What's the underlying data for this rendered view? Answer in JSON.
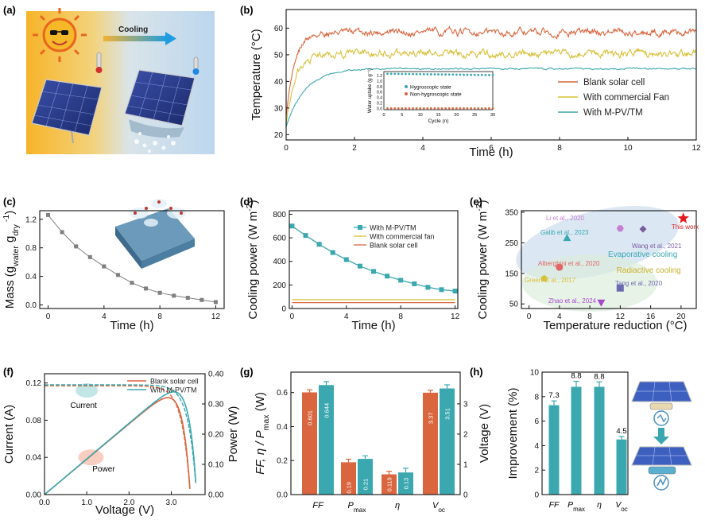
{
  "panels": {
    "a": {
      "label": "(a)",
      "arrow_text": "Cooling"
    },
    "b": {
      "label": "(b)"
    },
    "c": {
      "label": "(c)"
    },
    "d": {
      "label": "(d)"
    },
    "e": {
      "label": "(e)"
    },
    "f": {
      "label": "(f)"
    },
    "g": {
      "label": "(g)"
    },
    "h": {
      "label": "(h)"
    }
  },
  "colors": {
    "orange": "#d9663f",
    "yellow": "#d8c13a",
    "teal": "#3ba8b0",
    "gray": "#7f7f7f",
    "sky": "#cfe0f0",
    "sun": "#f5b829"
  },
  "chart_data": [
    {
      "id": "b",
      "type": "line",
      "title": "",
      "xlabel": "Time (h)",
      "ylabel": "Temperature (°C)",
      "xlim": [
        0,
        12
      ],
      "ylim": [
        18,
        67
      ],
      "xticks": [
        "0",
        "2",
        "4",
        "6",
        "8",
        "10",
        "12"
      ],
      "xtick_values": [
        0,
        2,
        4,
        6,
        8,
        10,
        12
      ],
      "yticks": [
        "20",
        "30",
        "40",
        "50",
        "60"
      ],
      "ytick_values": [
        20,
        30,
        40,
        50,
        60
      ],
      "series": [
        {
          "name": "Blank solar cell",
          "color": "#d9663f",
          "start": 27,
          "plateau": 58.5,
          "tau": 0.25,
          "noise": 1.4
        },
        {
          "name": "With commercial Fan",
          "color": "#d8c13a",
          "start": 24,
          "plateau": 50.5,
          "tau": 0.28,
          "noise": 1.5
        },
        {
          "name": "With M-PV/TM",
          "color": "#3ba8b0",
          "start": 23,
          "plateau": 44.8,
          "tau": 0.55,
          "noise": 0.3
        }
      ],
      "inset": {
        "xlabel": "Cycle (n)",
        "ylabel": "Water uptake (g g⁻¹)",
        "xticks": [
          "0",
          "5",
          "10",
          "15",
          "20",
          "25",
          "30"
        ],
        "xtick_values": [
          0,
          5,
          10,
          15,
          20,
          25,
          30
        ],
        "yticks": [
          "0.0",
          "0.2",
          "0.4",
          "0.6",
          "0.8",
          "1.0",
          "1.2"
        ],
        "ytick_values": [
          0,
          0.2,
          0.4,
          0.6,
          0.8,
          1.0,
          1.2
        ],
        "xlim": [
          0,
          30
        ],
        "ylim": [
          -0.05,
          1.35
        ],
        "series": [
          {
            "name": "Hygroscopic state",
            "color": "#3ba8b0",
            "start": 1.27,
            "end": 1.22
          },
          {
            "name": "Non-hygroscopic state",
            "color": "#d9663f",
            "start": 0.0,
            "end": 0.0
          }
        ]
      }
    },
    {
      "id": "c",
      "type": "line",
      "xlabel": "Time (h)",
      "ylabel": "Mass (g_water g_dry⁻¹)",
      "ylabel_parts": {
        "pre": "Mass (g",
        "sub1": "water",
        "mid": " g",
        "sub2": "dry",
        "sup": " -1",
        "post": ")"
      },
      "xlim": [
        -0.6,
        12.6
      ],
      "ylim": [
        -0.05,
        1.32
      ],
      "xticks": [
        "0",
        "4",
        "8",
        "12"
      ],
      "xtick_values": [
        0,
        4,
        8,
        12
      ],
      "yticks": [
        "0.0",
        "0.4",
        "0.8",
        "1.2"
      ],
      "ytick_values": [
        0,
        0.4,
        0.8,
        1.2
      ],
      "x": [
        0,
        1,
        2,
        3,
        4,
        5,
        6,
        7,
        8,
        9,
        10,
        11,
        12
      ],
      "y": [
        1.26,
        1.02,
        0.82,
        0.67,
        0.54,
        0.42,
        0.31,
        0.23,
        0.17,
        0.13,
        0.1,
        0.07,
        0.04
      ]
    },
    {
      "id": "d",
      "type": "line",
      "xlabel": "Time (h)",
      "ylabel": "Cooling power (W m⁻²)",
      "ylabel_parts": {
        "pre": "Cooling power (W m",
        "sup": "-2",
        "post": ")"
      },
      "xlim": [
        -0.2,
        12.2
      ],
      "ylim": [
        0,
        830
      ],
      "xticks": [
        "0",
        "4",
        "8",
        "12"
      ],
      "xtick_values": [
        0,
        4,
        8,
        12
      ],
      "yticks": [
        "0",
        "200",
        "400",
        "600",
        "800"
      ],
      "ytick_values": [
        0,
        200,
        400,
        600,
        800
      ],
      "series": [
        {
          "name": "With M-PV/TM",
          "color": "#3ba8b0",
          "x": [
            0,
            1,
            2,
            3,
            4,
            5,
            6,
            7,
            8,
            9,
            10,
            11,
            12
          ],
          "y": [
            700,
            620,
            545,
            475,
            415,
            360,
            315,
            275,
            240,
            210,
            180,
            160,
            148
          ]
        },
        {
          "name": "With commercial fan",
          "color": "#d8c13a",
          "x": [
            0,
            12
          ],
          "y": [
            75,
            75
          ]
        },
        {
          "name": "Blank solar cell",
          "color": "#d9663f",
          "x": [
            0,
            12
          ],
          "y": [
            50,
            50
          ]
        }
      ]
    },
    {
      "id": "e",
      "type": "scatter",
      "xlabel": "Temperature reduction (°C)",
      "ylabel": "Cooling power (W m⁻²)",
      "ylabel_parts": {
        "pre": "Cooling power (W m",
        "sup": "-2",
        "post": ")"
      },
      "xlim": [
        -1,
        22
      ],
      "ylim": [
        35,
        355
      ],
      "xticks": [
        "0",
        "4",
        "8",
        "12",
        "16",
        "20"
      ],
      "xtick_values": [
        0,
        4,
        8,
        12,
        16,
        20
      ],
      "yticks": [
        "50",
        "150",
        "250",
        "350"
      ],
      "ytick_values": [
        50,
        150,
        250,
        350
      ],
      "regions": [
        "Evaporative cooling",
        "Radiactive cooling"
      ],
      "points": [
        {
          "name": "This work",
          "x": 20.3,
          "y": 330,
          "color": "#e31a1c",
          "marker": "star"
        },
        {
          "name": "Li et al., 2020",
          "x": 12,
          "y": 297,
          "color": "#c77dd1",
          "marker": "hexagon"
        },
        {
          "name": "Wang et al., 2021",
          "x": 15,
          "y": 295,
          "color": "#7a5c9e",
          "marker": "diamond"
        },
        {
          "name": "Galib et al., 2023",
          "x": 5,
          "y": 265,
          "color": "#3ba8b0",
          "marker": "triangle"
        },
        {
          "name": "Alberghini et al., 2020",
          "x": 4,
          "y": 170,
          "color": "#e06666",
          "marker": "circle"
        },
        {
          "name": "Green et al., 2017",
          "x": 2,
          "y": 133,
          "color": "#d8c13a",
          "marker": "pentagon"
        },
        {
          "name": "Tang et al., 2020",
          "x": 12,
          "y": 102,
          "color": "#6a6ab0",
          "marker": "square"
        },
        {
          "name": "Zhao et al., 2024",
          "x": 9.5,
          "y": 55,
          "color": "#a64ac9",
          "marker": "triangle-down"
        }
      ]
    },
    {
      "id": "f",
      "type": "line",
      "xlabel": "Voltage (V)",
      "ylabel": "Current (A)",
      "y2label": "Power (W)",
      "xlim": [
        0,
        3.8
      ],
      "ylim": [
        0,
        0.13
      ],
      "y2lim": [
        0,
        0.4
      ],
      "xticks": [
        "0.0",
        "1.0",
        "2.0",
        "3.0"
      ],
      "xtick_values": [
        0,
        1,
        2,
        3
      ],
      "yticks": [
        "0.00",
        "0.04",
        "0.08",
        "0.12"
      ],
      "ytick_values": [
        0,
        0.04,
        0.08,
        0.12
      ],
      "y2ticks": [
        "0.00",
        "0.10",
        "0.20",
        "0.30",
        "0.40"
      ],
      "y2tick_values": [
        0,
        0.1,
        0.2,
        0.3,
        0.4
      ],
      "annotations": [
        "Current",
        "Power"
      ],
      "series": [
        {
          "name": "Blank solar cell",
          "color": "#d9663f",
          "isc": 0.117,
          "voc": 3.45,
          "b": 0.19
        },
        {
          "name": "With M-PV/TM",
          "color": "#3ba8b0",
          "isc": 0.118,
          "voc": 3.6,
          "b": 0.19
        }
      ]
    },
    {
      "id": "g",
      "type": "bar",
      "ylabel": "FF, η / P_max (W)",
      "y2label": "Voltage (V)",
      "ylabel_parts": {
        "pre": "FF, η / P",
        "sub": "max",
        "post": " (W)"
      },
      "categories": [
        "FF",
        "P_max",
        "η",
        "V_oc"
      ],
      "category_parts": [
        {
          "t": "FF",
          "s": ""
        },
        {
          "t": "P",
          "s": "max"
        },
        {
          "t": "η",
          "s": ""
        },
        {
          "t": "V",
          "s": "oc"
        }
      ],
      "ylim": [
        0,
        0.72
      ],
      "y2lim": [
        0,
        4.05
      ],
      "yticks": [
        "0.0",
        "0.2",
        "0.4",
        "0.6"
      ],
      "ytick_values": [
        0,
        0.2,
        0.4,
        0.6
      ],
      "y2ticks": [
        "0",
        "1",
        "2",
        "3"
      ],
      "y2tick_values": [
        0,
        1,
        2,
        3
      ],
      "series": [
        {
          "name": "Blank solar cell",
          "color": "#d9663f",
          "values": [
            0.601,
            0.19,
            0.119,
            3.37
          ],
          "labels": [
            "0.601",
            "0.19",
            "0.119",
            "3.37"
          ],
          "errors": [
            0.015,
            0.018,
            0.018,
            0.08
          ]
        },
        {
          "name": "With M-PV/TM",
          "color": "#3ba8b0",
          "values": [
            0.644,
            0.21,
            0.13,
            3.51
          ],
          "labels": [
            "0.644",
            "0.21",
            "0.13",
            "3.51"
          ],
          "errors": [
            0.02,
            0.018,
            0.025,
            0.12
          ]
        }
      ]
    },
    {
      "id": "h",
      "type": "bar",
      "ylabel": "Improvement (%)",
      "categories": [
        "FF",
        "P_max",
        "η",
        "V_oc"
      ],
      "category_parts": [
        {
          "t": "FF",
          "s": ""
        },
        {
          "t": "P",
          "s": "max"
        },
        {
          "t": "η",
          "s": ""
        },
        {
          "t": "V",
          "s": "oc"
        }
      ],
      "ylim": [
        0,
        10
      ],
      "yticks": [
        "0",
        "2",
        "4",
        "6",
        "8",
        "10"
      ],
      "ytick_values": [
        0,
        2,
        4,
        6,
        8,
        10
      ],
      "values": [
        7.3,
        8.8,
        8.8,
        4.5
      ],
      "labels": [
        "7.3",
        "8.8",
        "8.8",
        "4.5"
      ],
      "errors": [
        0.35,
        0.45,
        0.4,
        0.25
      ],
      "color": "#3ba8b0"
    }
  ]
}
